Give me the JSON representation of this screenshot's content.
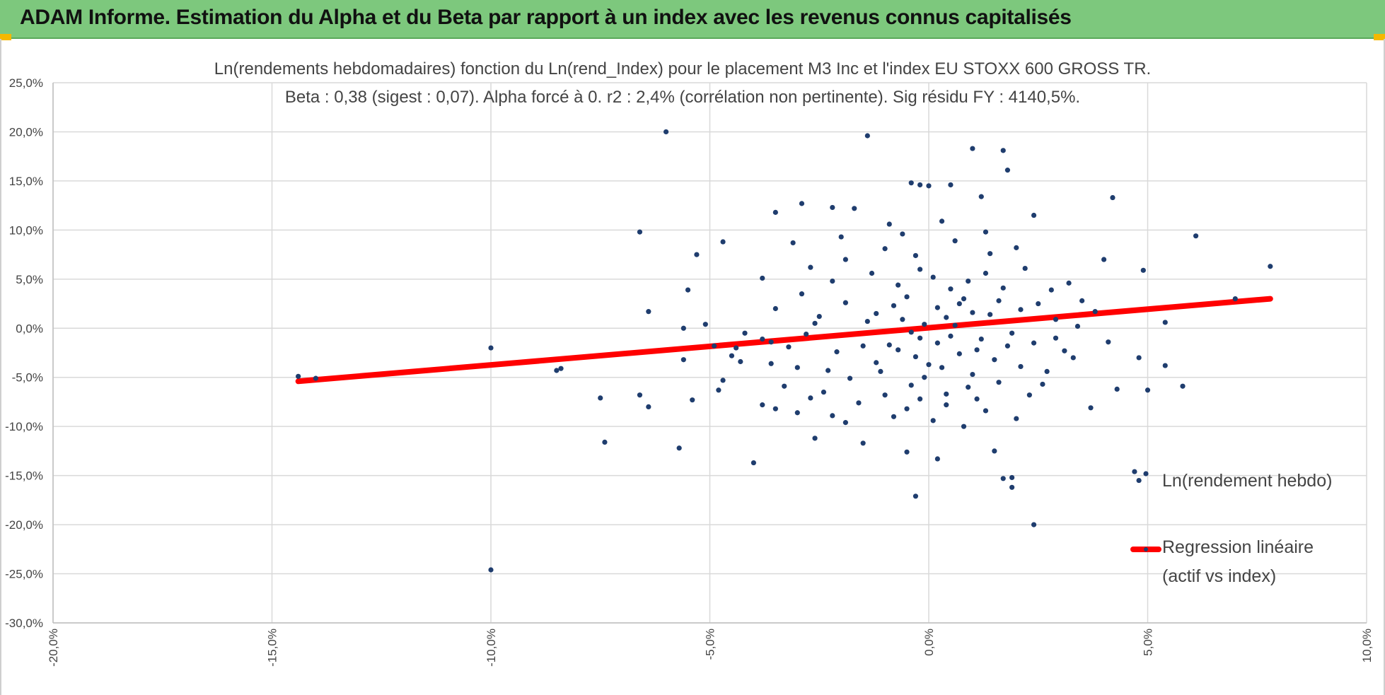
{
  "header": {
    "title": "ADAM Informe. Estimation du Alpha et du Beta par rapport à un index avec les revenus connus capitalisés",
    "background_color": "#7dc87d",
    "corner_color": "#f5b800"
  },
  "chart_data": {
    "type": "scatter",
    "title": "Ln(rendements hebdomadaires) fonction du Ln(rend_Index) pour le placement M3 Inc et l'index EU STOXX 600 GROSS TR.",
    "subtitle": "Beta : 0,38 (sigest : 0,07). Alpha forcé à 0. r2 : 2,4% (corrélation non pertinente). Sig résidu FY : 4140,5%.",
    "xlim": [
      -20,
      10
    ],
    "ylim": [
      -30,
      25
    ],
    "x_ticks": [
      "-20,0%",
      "-15,0%",
      "-10,0%",
      "-5,0%",
      "0,0%",
      "5,0%",
      "10,0%"
    ],
    "y_ticks": [
      "25,0%",
      "20,0%",
      "15,0%",
      "10,0%",
      "5,0%",
      "0,0%",
      "-5,0%",
      "-10,0%",
      "-15,0%",
      "-20,0%",
      "-25,0%",
      "-30,0%"
    ],
    "grid": true,
    "legend_position": "bottom-right",
    "series": [
      {
        "name": "Ln(rendement hebdo)",
        "kind": "scatter",
        "color": "#1f3d6e",
        "points": [
          [
            -14.4,
            -4.9
          ],
          [
            -14.0,
            -5.1
          ],
          [
            -10.0,
            -2.0
          ],
          [
            -10.0,
            -24.6
          ],
          [
            -8.5,
            -4.3
          ],
          [
            -8.4,
            -4.1
          ],
          [
            -7.5,
            -7.1
          ],
          [
            -7.4,
            -11.6
          ],
          [
            -6.6,
            9.8
          ],
          [
            -6.4,
            1.7
          ],
          [
            -6.4,
            -8.0
          ],
          [
            -6.6,
            -6.8
          ],
          [
            -6.0,
            20.0
          ],
          [
            -5.7,
            -12.2
          ],
          [
            -5.6,
            0.0
          ],
          [
            -5.5,
            3.9
          ],
          [
            -5.3,
            7.5
          ],
          [
            -5.4,
            -7.3
          ],
          [
            -5.6,
            -3.2
          ],
          [
            -5.1,
            0.4
          ],
          [
            -4.9,
            -1.8
          ],
          [
            -4.7,
            8.8
          ],
          [
            -4.7,
            -5.3
          ],
          [
            -4.8,
            -6.3
          ],
          [
            -4.5,
            -2.8
          ],
          [
            -4.3,
            -3.4
          ],
          [
            -4.0,
            -13.7
          ],
          [
            -3.8,
            -7.8
          ],
          [
            -3.5,
            11.8
          ],
          [
            -3.5,
            -8.2
          ],
          [
            -3.8,
            -1.1
          ],
          [
            -3.6,
            -3.6
          ],
          [
            -3.3,
            -5.9
          ],
          [
            -3.0,
            -4.0
          ],
          [
            -2.9,
            12.7
          ],
          [
            -2.7,
            -7.1
          ],
          [
            -2.6,
            -11.2
          ],
          [
            -2.2,
            -8.9
          ],
          [
            -2.2,
            12.3
          ],
          [
            -1.9,
            -9.6
          ],
          [
            -1.5,
            -11.7
          ],
          [
            -1.4,
            19.6
          ],
          [
            -0.5,
            -12.6
          ],
          [
            -0.3,
            -17.1
          ],
          [
            -0.2,
            -7.2
          ],
          [
            0.2,
            -13.3
          ],
          [
            0.5,
            14.6
          ],
          [
            1.0,
            18.3
          ],
          [
            1.5,
            -12.5
          ],
          [
            1.7,
            -15.3
          ],
          [
            1.9,
            -16.2
          ],
          [
            1.9,
            -15.2
          ],
          [
            2.4,
            -20.0
          ],
          [
            3.7,
            -8.1
          ],
          [
            4.2,
            13.3
          ],
          [
            4.7,
            -14.6
          ],
          [
            4.8,
            -15.5
          ],
          [
            4.8,
            -3.0
          ],
          [
            5.0,
            -6.3
          ],
          [
            5.4,
            -3.8
          ],
          [
            5.4,
            0.6
          ],
          [
            5.8,
            -5.9
          ],
          [
            6.1,
            9.4
          ],
          [
            7.0,
            3.0
          ],
          [
            7.8,
            6.3
          ],
          [
            4.9,
            5.9
          ],
          [
            4.3,
            -6.2
          ],
          [
            4.0,
            7.0
          ],
          [
            3.5,
            2.8
          ],
          [
            2.6,
            -5.7
          ],
          [
            1.8,
            16.1
          ],
          [
            1.7,
            18.1
          ],
          [
            -0.4,
            14.8
          ],
          [
            -0.2,
            14.6
          ],
          [
            0.0,
            14.5
          ],
          [
            1.2,
            13.4
          ],
          [
            -1.7,
            12.2
          ],
          [
            -0.9,
            10.6
          ],
          [
            1.3,
            9.8
          ],
          [
            2.4,
            11.5
          ],
          [
            3.3,
            -3.0
          ],
          [
            2.9,
            -1.0
          ],
          [
            3.8,
            1.7
          ],
          [
            4.1,
            -1.4
          ],
          [
            -2.0,
            9.3
          ],
          [
            -3.1,
            8.7
          ],
          [
            -2.2,
            4.8
          ],
          [
            -3.8,
            5.1
          ],
          [
            -1.9,
            2.6
          ],
          [
            -2.8,
            -0.6
          ],
          [
            -2.5,
            1.2
          ],
          [
            -3.2,
            -1.9
          ],
          [
            -2.1,
            -2.4
          ],
          [
            -1.8,
            -5.1
          ],
          [
            -2.4,
            -6.5
          ],
          [
            -1.2,
            -3.5
          ],
          [
            -1.6,
            -7.6
          ],
          [
            -0.8,
            -9.0
          ],
          [
            -0.5,
            -8.2
          ],
          [
            0.4,
            -6.7
          ],
          [
            0.8,
            -10.0
          ],
          [
            1.3,
            -8.4
          ],
          [
            1.6,
            -5.5
          ],
          [
            2.0,
            -9.2
          ],
          [
            2.3,
            -6.8
          ],
          [
            2.7,
            -4.4
          ],
          [
            3.1,
            -2.3
          ],
          [
            3.4,
            0.2
          ],
          [
            2.8,
            3.9
          ],
          [
            2.2,
            6.1
          ],
          [
            1.4,
            7.6
          ],
          [
            0.6,
            8.9
          ],
          [
            -0.3,
            7.4
          ],
          [
            -1.0,
            8.1
          ],
          [
            -1.3,
            5.6
          ],
          [
            -0.7,
            4.4
          ],
          [
            0.1,
            5.2
          ],
          [
            0.9,
            4.8
          ],
          [
            1.7,
            4.1
          ],
          [
            2.5,
            2.5
          ],
          [
            -0.9,
            -1.7
          ],
          [
            -0.6,
            0.9
          ],
          [
            -0.3,
            -2.9
          ],
          [
            0.2,
            2.1
          ],
          [
            0.5,
            -0.8
          ],
          [
            0.8,
            3.0
          ],
          [
            1.1,
            -2.2
          ],
          [
            1.4,
            1.4
          ],
          [
            -1.4,
            0.7
          ],
          [
            -1.1,
            -4.4
          ],
          [
            -0.4,
            -5.8
          ],
          [
            0.3,
            -4.0
          ],
          [
            0.9,
            -6.0
          ],
          [
            1.5,
            -3.2
          ],
          [
            1.9,
            -0.5
          ],
          [
            2.1,
            1.9
          ],
          [
            -0.1,
            0.4
          ],
          [
            0.4,
            1.1
          ],
          [
            -0.2,
            -1.0
          ],
          [
            0.6,
            0.3
          ],
          [
            1.0,
            1.6
          ],
          [
            1.2,
            -1.1
          ],
          [
            -0.5,
            3.2
          ],
          [
            0.0,
            -3.7
          ],
          [
            -0.8,
            2.3
          ],
          [
            0.7,
            -2.6
          ],
          [
            1.6,
            2.8
          ],
          [
            -1.5,
            -1.8
          ],
          [
            -2.6,
            0.5
          ],
          [
            -2.9,
            3.5
          ],
          [
            -3.5,
            2.0
          ],
          [
            -4.2,
            -0.5
          ],
          [
            -4.4,
            -2.0
          ],
          [
            -3.0,
            -8.6
          ],
          [
            -2.3,
            -4.3
          ],
          [
            -1.0,
            -6.8
          ],
          [
            0.1,
            -9.4
          ],
          [
            1.1,
            -7.2
          ],
          [
            2.1,
            -3.9
          ],
          [
            2.4,
            -1.5
          ],
          [
            2.9,
            0.9
          ],
          [
            3.2,
            4.6
          ],
          [
            2.0,
            8.2
          ],
          [
            0.3,
            10.9
          ],
          [
            -0.6,
            9.6
          ],
          [
            -1.9,
            7.0
          ],
          [
            -2.7,
            6.2
          ],
          [
            -3.6,
            -1.4
          ],
          [
            -0.7,
            -2.2
          ],
          [
            -0.1,
            -5.0
          ],
          [
            0.5,
            4.0
          ],
          [
            1.3,
            5.6
          ],
          [
            1.8,
            -1.8
          ],
          [
            0.2,
            -1.5
          ],
          [
            -1.2,
            1.5
          ],
          [
            -0.4,
            -0.4
          ],
          [
            0.7,
            2.5
          ],
          [
            1.0,
            -4.7
          ],
          [
            -0.2,
            6.0
          ],
          [
            0.4,
            -7.8
          ]
        ]
      },
      {
        "name": "Regression linéaire",
        "name_line2": "(actif vs index)",
        "kind": "line",
        "color": "#ff0000",
        "points": [
          [
            -14.4,
            -5.4
          ],
          [
            7.8,
            3.0
          ]
        ]
      }
    ]
  }
}
